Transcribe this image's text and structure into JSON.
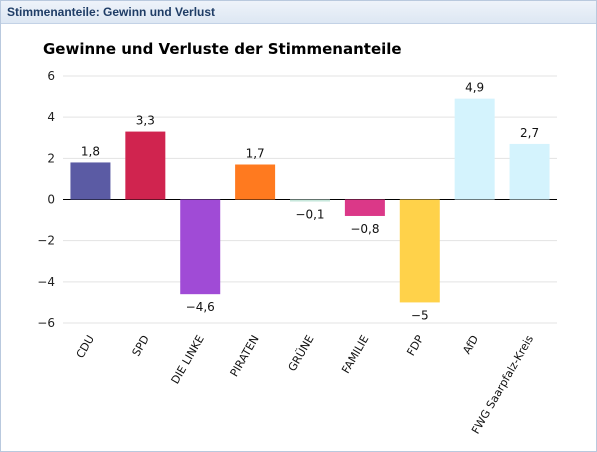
{
  "panel": {
    "title": "Stimmenanteile: Gewinn und Verlust"
  },
  "chart_data": {
    "type": "bar",
    "title": "Gewinne und Verluste der Stimmenanteile",
    "xlabel": "",
    "ylabel": "",
    "ylim": [
      -6,
      6
    ],
    "yticks": [
      6,
      4,
      2,
      0,
      -2,
      -4,
      -6
    ],
    "ytick_labels": [
      "6",
      "4",
      "2",
      "0",
      "−2",
      "−4",
      "−6"
    ],
    "grid": true,
    "legend": "none",
    "categories": [
      "CDU",
      "SPD",
      "DIE LINKE",
      "PIRATEN",
      "GRÜNE",
      "FAMILIE",
      "FDP",
      "AfD",
      "FWG Saarpfalz-Kreis"
    ],
    "values": [
      1.8,
      3.3,
      -4.6,
      1.7,
      -0.1,
      -0.8,
      -5,
      4.9,
      2.7
    ],
    "value_labels": [
      "1,8",
      "3,3",
      "−4,6",
      "1,7",
      "−0,1",
      "−0,8",
      "−5",
      "4,9",
      "2,7"
    ],
    "colors": [
      "#5b5ba4",
      "#d0244f",
      "#a04bd6",
      "#ff7a1f",
      "#c8e8dc",
      "#db3888",
      "#ffd24a",
      "#d4f3fd",
      "#d4f3fd"
    ]
  }
}
